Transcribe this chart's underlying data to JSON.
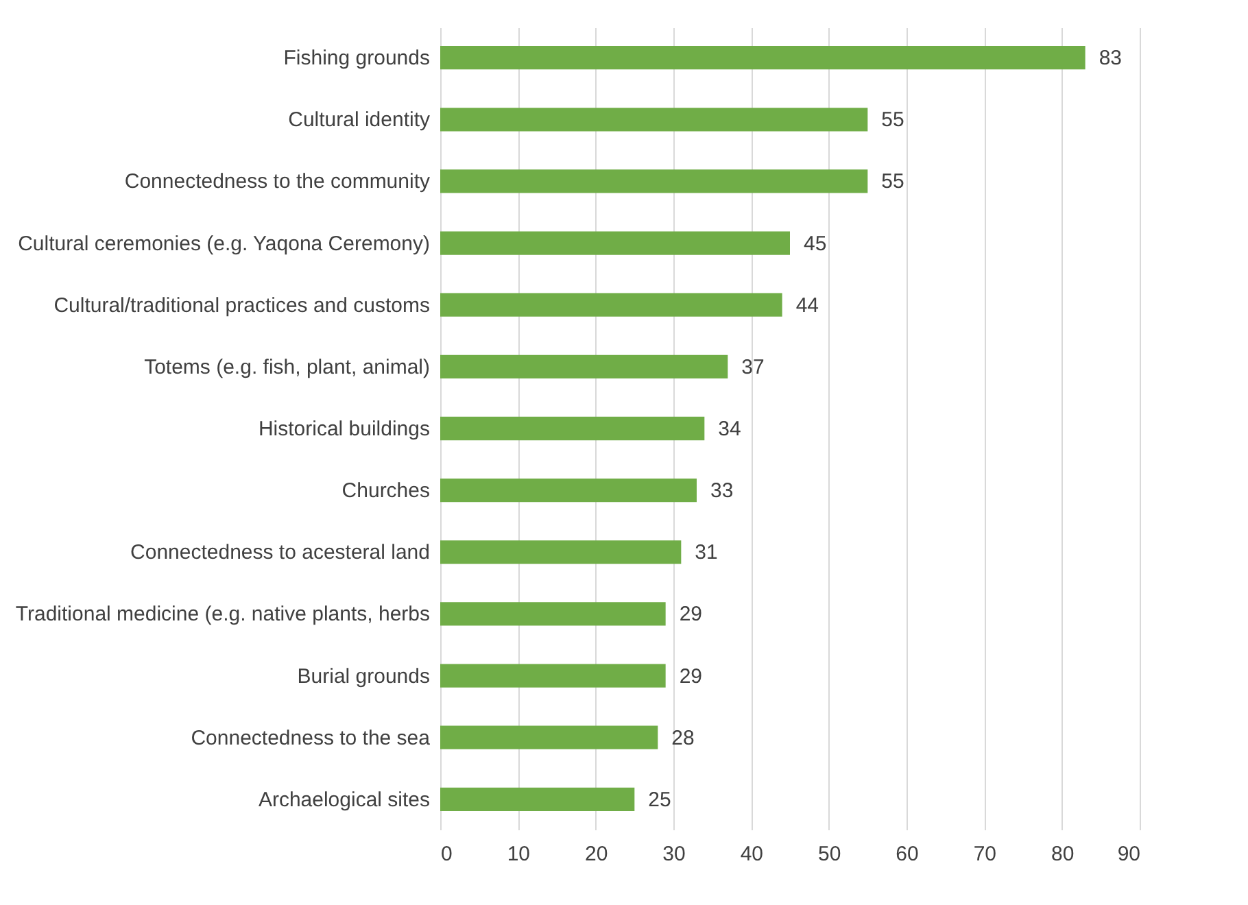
{
  "chart_data": {
    "type": "bar",
    "orientation": "horizontal",
    "categories": [
      "Fishing grounds",
      "Cultural identity",
      "Connectedness to the community",
      "Cultural ceremonies (e.g. Yaqona Ceremony)",
      "Cultural/traditional practices and customs",
      "Totems (e.g. fish, plant, animal)",
      "Historical buildings",
      "Churches",
      "Connectedness to acesteral land",
      "Traditional medicine (e.g. native plants, herbs",
      "Burial grounds",
      "Connectedness to the sea",
      "Archaelogical sites"
    ],
    "values": [
      83,
      55,
      55,
      45,
      44,
      37,
      34,
      33,
      31,
      29,
      29,
      28,
      25
    ],
    "color": "#70ad47",
    "xlim": [
      0,
      90
    ],
    "xticks": [
      0,
      10,
      20,
      30,
      40,
      50,
      60,
      70,
      80,
      90
    ],
    "grid": "x",
    "data_labels": true
  }
}
